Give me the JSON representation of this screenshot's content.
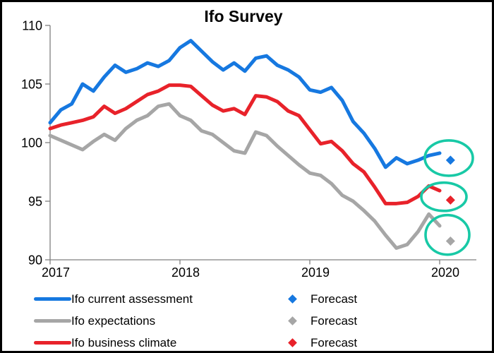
{
  "title": "Ifo Survey",
  "chart_data": {
    "type": "line",
    "title": "Ifo Survey",
    "x_start": "2017-01",
    "x_unit": "month",
    "x_tick_labels": [
      "2017",
      "2018",
      "2019",
      "2020"
    ],
    "y_ticks": [
      110,
      105,
      100,
      95,
      90
    ],
    "ylim": [
      90,
      110
    ],
    "grid": false,
    "legend_position": "bottom",
    "forecast_label": "Forecast",
    "highlight_color": "#18c9a6",
    "axis_color": "#7f7f7f",
    "series": [
      {
        "name": "Ifo current assessment",
        "color": "#1678e0",
        "values": [
          101.7,
          102.8,
          103.3,
          105.0,
          104.4,
          105.6,
          106.6,
          106.0,
          106.3,
          106.8,
          106.5,
          107.0,
          108.1,
          108.7,
          107.8,
          106.9,
          106.2,
          106.8,
          106.1,
          107.2,
          107.4,
          106.6,
          106.2,
          105.6,
          104.5,
          104.3,
          104.7,
          103.6,
          101.8,
          100.8,
          99.5,
          97.9,
          98.7,
          98.2,
          98.5,
          98.9,
          99.1
        ],
        "forecast_value": 98.5
      },
      {
        "name": "Ifo expectations",
        "color": "#a6a6a6",
        "values": [
          100.6,
          100.2,
          99.8,
          99.4,
          100.1,
          100.7,
          100.2,
          101.2,
          101.9,
          102.3,
          103.1,
          103.3,
          102.3,
          101.9,
          101.0,
          100.7,
          100.0,
          99.3,
          99.1,
          100.9,
          100.6,
          99.7,
          98.9,
          98.1,
          97.4,
          97.2,
          96.5,
          95.5,
          95.0,
          94.2,
          93.3,
          92.1,
          91.0,
          91.3,
          92.4,
          93.9,
          92.9
        ],
        "forecast_value": 91.6
      },
      {
        "name": "Ifo business climate",
        "color": "#e8222a",
        "values": [
          101.2,
          101.5,
          101.7,
          101.9,
          102.2,
          103.1,
          102.5,
          102.9,
          103.5,
          104.1,
          104.4,
          104.9,
          104.9,
          104.8,
          104.0,
          103.2,
          102.7,
          102.9,
          102.4,
          104.0,
          103.9,
          103.5,
          102.7,
          102.3,
          101.1,
          99.9,
          100.1,
          99.3,
          98.2,
          97.5,
          96.2,
          94.8,
          94.8,
          94.9,
          95.4,
          96.3,
          95.9
        ],
        "forecast_value": 95.1
      }
    ]
  }
}
